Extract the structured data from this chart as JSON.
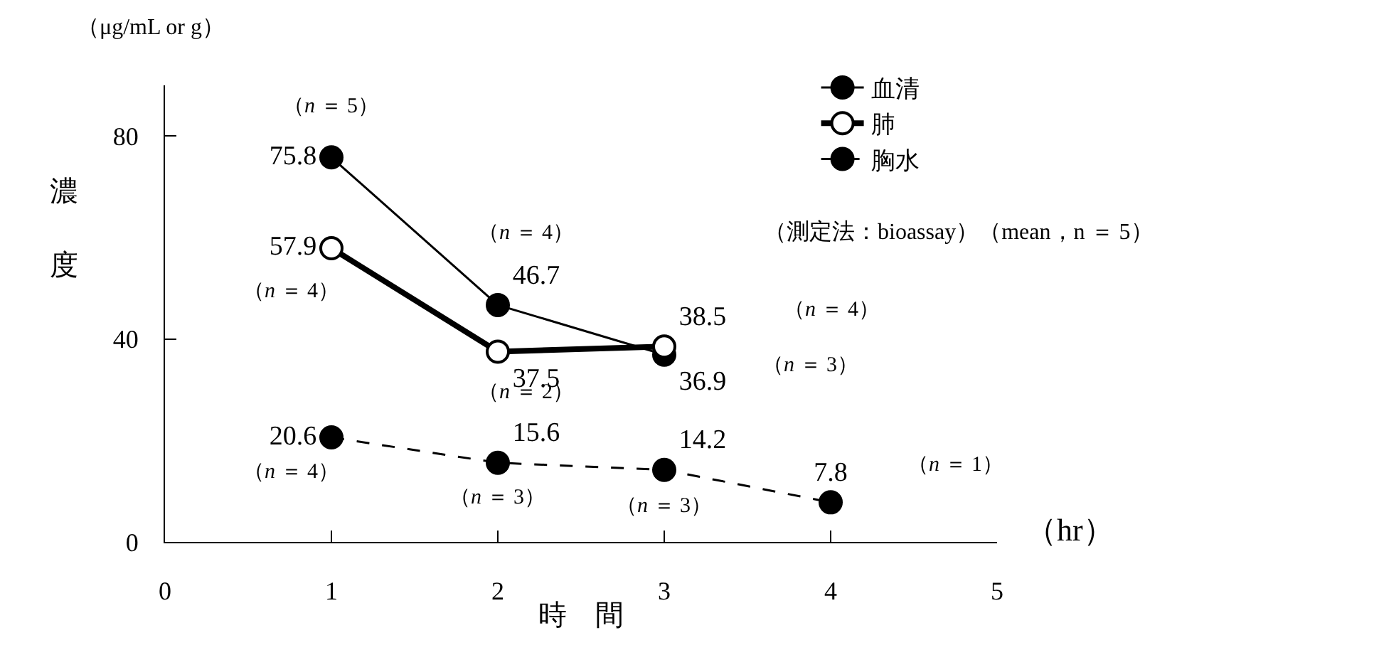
{
  "chart_data": {
    "type": "line",
    "xlabel": "時　間",
    "ylabel": "濃度",
    "x": [
      1,
      2,
      3,
      4
    ],
    "xlim": [
      0,
      5
    ],
    "xticks": [
      0,
      1,
      2,
      3,
      4,
      5
    ],
    "ylim": [
      0,
      90
    ],
    "yticks": [
      0,
      40,
      80
    ],
    "grid": false,
    "legend": "top right",
    "marker": "circle",
    "series": [
      {
        "name": "血清",
        "color": "#000000",
        "values": [
          75.8,
          46.7,
          36.9,
          null
        ],
        "value_labels": [
          "75.8",
          "46.7",
          "36.9",
          null
        ],
        "line_style": "solid"
      },
      {
        "name": "肺",
        "color": "#000000",
        "values": [
          57.9,
          37.5,
          38.5,
          null
        ],
        "value_labels": [
          "57.9",
          "37.5",
          "38.5",
          null
        ],
        "line_style": "solid",
        "marker": "circle-open"
      },
      {
        "name": "胸水",
        "color": "#000000",
        "values": [
          20.6,
          15.6,
          14.2,
          7.8
        ],
        "value_labels": [
          "20.6",
          "15.6",
          "14.2",
          "7.8"
        ],
        "line_style": "dashed"
      }
    ],
    "annotations": [
      "（μg/mL or g）",
      "（hr）",
      "（測定法：bioassay）（mean，n ＝ 5）",
      "（n ＝ 3）",
      "（n ＝ 4）",
      "（n ＝ 1）",
      {
        "text": "（n ＝ 5）",
        "x": 1,
        "y": 75.8
      },
      {
        "text": "（n ＝ 4）",
        "x": 2,
        "y": 46.7
      },
      {
        "text": "（n ＝ 4）",
        "x": 1,
        "y": 57.9
      },
      {
        "text": "（n ＝ 2）",
        "x": 2,
        "y": 37.5
      },
      {
        "text": "（n ＝ 4）",
        "x": 1,
        "y": 20.6
      },
      {
        "text": "（n ＝ 3）",
        "x": 2,
        "y": 15.6
      },
      {
        "text": "（n ＝ 3）",
        "x": 3,
        "y": 14.2
      }
    ]
  }
}
